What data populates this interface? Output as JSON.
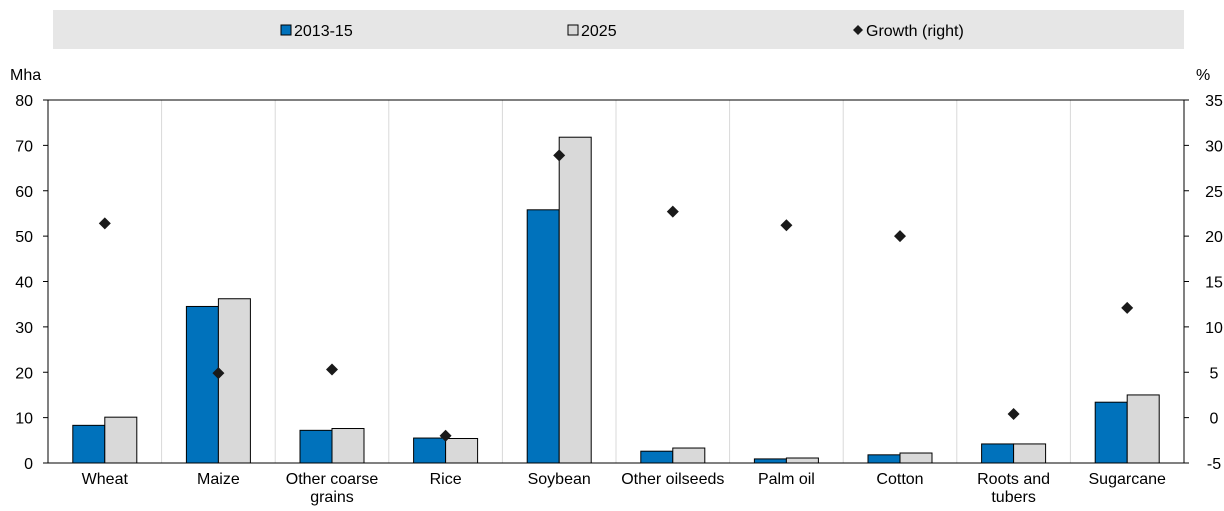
{
  "chart_data": {
    "type": "bar",
    "categories": [
      [
        "Wheat"
      ],
      [
        "Maize"
      ],
      [
        "Other coarse",
        "grains"
      ],
      [
        "Rice"
      ],
      [
        "Soybean"
      ],
      [
        "Other oilseeds"
      ],
      [
        "Palm oil"
      ],
      [
        "Cotton"
      ],
      [
        "Roots and",
        "tubers"
      ],
      [
        "Sugarcane"
      ]
    ],
    "series": [
      {
        "name": "2013-15",
        "axis": "left",
        "kind": "bar",
        "values": [
          8.3,
          34.5,
          7.2,
          5.5,
          55.8,
          2.6,
          0.9,
          1.8,
          4.2,
          13.4
        ]
      },
      {
        "name": "2025",
        "axis": "left",
        "kind": "bar",
        "values": [
          10.1,
          36.2,
          7.6,
          5.4,
          71.8,
          3.3,
          1.1,
          2.2,
          4.2,
          15.0
        ]
      },
      {
        "name": "Growth (right)",
        "axis": "right",
        "kind": "marker",
        "values": [
          21.4,
          4.9,
          5.3,
          -2.0,
          28.9,
          22.7,
          21.2,
          20.0,
          0.4,
          12.1
        ]
      }
    ],
    "left_axis": {
      "unit": "Mha",
      "min": 0,
      "max": 80,
      "ticks": [
        0,
        10,
        20,
        30,
        40,
        50,
        60,
        70,
        80
      ]
    },
    "right_axis": {
      "unit": "%",
      "min": -5,
      "max": 35,
      "ticks": [
        -5,
        0,
        5,
        10,
        15,
        20,
        25,
        30,
        35
      ]
    },
    "legend_position": "top",
    "grid": "vertical separators",
    "colors": {
      "s2013": "#0072bc",
      "s2025": "#d9d9d9",
      "growth": "#1a1a1a",
      "legend_bg": "#e6e6e6"
    }
  }
}
